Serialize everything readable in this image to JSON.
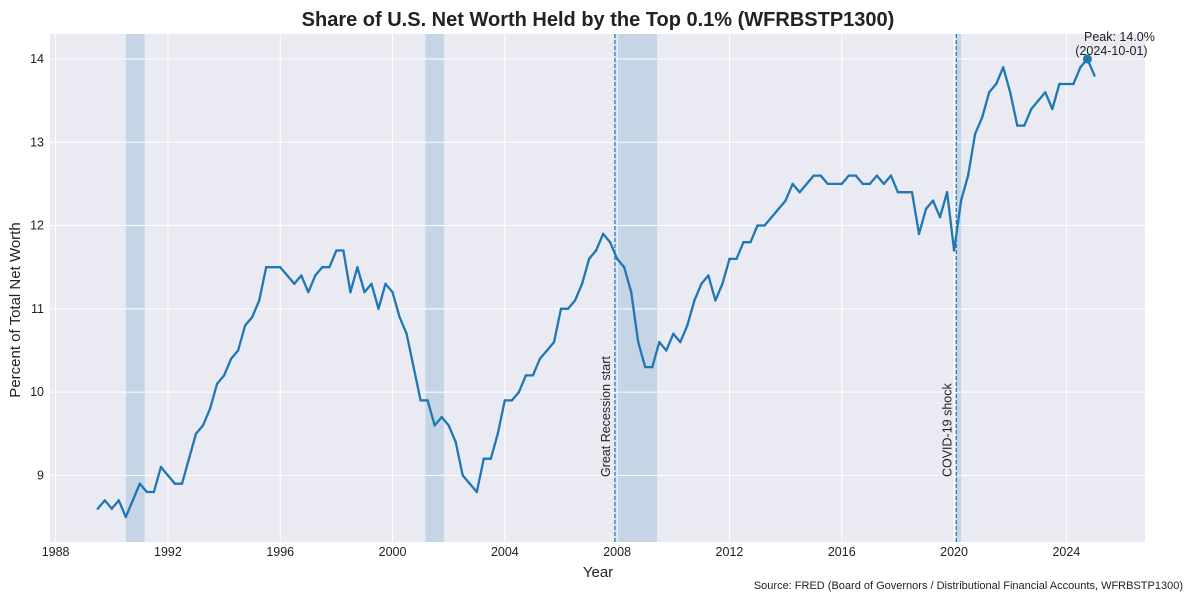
{
  "chart_data": {
    "type": "line",
    "title": "Share of U.S. Net Worth Held by the Top 0.1% (WFRBSTP1300)",
    "xlabel": "Year",
    "ylabel": "Percent of Total Net Worth",
    "xlim": [
      1987.8,
      2026.8
    ],
    "ylim": [
      8.2,
      14.3
    ],
    "x_ticks": [
      1988,
      1992,
      1996,
      2000,
      2004,
      2008,
      2012,
      2016,
      2020,
      2024
    ],
    "y_ticks": [
      9,
      10,
      11,
      12,
      13,
      14
    ],
    "grid": true,
    "background": "#e9eaf2",
    "line_color": "#1f77b4",
    "recession_color": "#c5d5e6",
    "source": "Source: FRED (Board of Governors / Distributional Financial Accounts, WFRBSTP1300)",
    "recessions": [
      {
        "start": 1990.5,
        "end": 1991.17
      },
      {
        "start": 2001.17,
        "end": 2001.83
      },
      {
        "start": 2007.92,
        "end": 2009.42
      },
      {
        "start": 2020.08,
        "end": 2020.25
      }
    ],
    "events": [
      {
        "x": 2007.92,
        "label": "Great Recession start"
      },
      {
        "x": 2020.08,
        "label": "COVID-19 shock"
      }
    ],
    "peak": {
      "x": 2024.75,
      "y": 14.0,
      "label_line1": "Peak: 14.0%",
      "label_line2": "(2024-10-01)"
    },
    "series": [
      {
        "x": [
          1989.5,
          1989.75,
          1990,
          1990.25,
          1990.5,
          1990.75,
          1991,
          1991.25,
          1991.5,
          1991.75,
          1992,
          1992.25,
          1992.5,
          1992.75,
          1993,
          1993.25,
          1993.5,
          1993.75,
          1994,
          1994.25,
          1994.5,
          1994.75,
          1995,
          1995.25,
          1995.5,
          1995.75,
          1996,
          1996.25,
          1996.5,
          1996.75,
          1997,
          1997.25,
          1997.5,
          1997.75,
          1998,
          1998.25,
          1998.5,
          1998.75,
          1999,
          1999.25,
          1999.5,
          1999.75,
          2000,
          2000.25,
          2000.5,
          2000.75,
          2001,
          2001.25,
          2001.5,
          2001.75,
          2002,
          2002.25,
          2002.5,
          2002.75,
          2003,
          2003.25,
          2003.5,
          2003.75,
          2004,
          2004.25,
          2004.5,
          2004.75,
          2005,
          2005.25,
          2005.5,
          2005.75,
          2006,
          2006.25,
          2006.5,
          2006.75,
          2007,
          2007.25,
          2007.5,
          2007.75,
          2008,
          2008.25,
          2008.5,
          2008.75,
          2009,
          2009.25,
          2009.5,
          2009.75,
          2010,
          2010.25,
          2010.5,
          2010.75,
          2011,
          2011.25,
          2011.5,
          2011.75,
          2012,
          2012.25,
          2012.5,
          2012.75,
          2013,
          2013.25,
          2013.5,
          2013.75,
          2014,
          2014.25,
          2014.5,
          2014.75,
          2015,
          2015.25,
          2015.5,
          2015.75,
          2016,
          2016.25,
          2016.5,
          2016.75,
          2017,
          2017.25,
          2017.5,
          2017.75,
          2018,
          2018.25,
          2018.5,
          2018.75,
          2019,
          2019.25,
          2019.5,
          2019.75,
          2020,
          2020.25,
          2020.5,
          2020.75,
          2021,
          2021.25,
          2021.5,
          2021.75,
          2022,
          2022.25,
          2022.5,
          2022.75,
          2023,
          2023.25,
          2023.5,
          2023.75,
          2024,
          2024.25,
          2024.5,
          2024.75,
          2025
        ],
        "values": [
          8.6,
          8.7,
          8.6,
          8.7,
          8.5,
          8.7,
          8.9,
          8.8,
          8.8,
          9.1,
          9.0,
          8.9,
          8.9,
          9.2,
          9.5,
          9.6,
          9.8,
          10.1,
          10.2,
          10.4,
          10.5,
          10.8,
          10.9,
          11.1,
          11.5,
          11.5,
          11.5,
          11.4,
          11.3,
          11.4,
          11.2,
          11.4,
          11.5,
          11.5,
          11.7,
          11.7,
          11.2,
          11.5,
          11.2,
          11.3,
          11.0,
          11.3,
          11.2,
          10.9,
          10.7,
          10.3,
          9.9,
          9.9,
          9.6,
          9.7,
          9.6,
          9.4,
          9.0,
          8.9,
          8.8,
          9.2,
          9.2,
          9.5,
          9.9,
          9.9,
          10.0,
          10.2,
          10.2,
          10.4,
          10.5,
          10.6,
          11.0,
          11.0,
          11.1,
          11.3,
          11.6,
          11.7,
          11.9,
          11.8,
          11.6,
          11.5,
          11.2,
          10.6,
          10.3,
          10.3,
          10.6,
          10.5,
          10.7,
          10.6,
          10.8,
          11.1,
          11.3,
          11.4,
          11.1,
          11.3,
          11.6,
          11.6,
          11.8,
          11.8,
          12.0,
          12.0,
          12.1,
          12.2,
          12.3,
          12.5,
          12.4,
          12.5,
          12.6,
          12.6,
          12.5,
          12.5,
          12.5,
          12.6,
          12.6,
          12.5,
          12.5,
          12.6,
          12.5,
          12.6,
          12.4,
          12.4,
          12.4,
          11.9,
          12.2,
          12.3,
          12.1,
          12.4,
          11.7,
          12.3,
          12.6,
          13.1,
          13.3,
          13.6,
          13.7,
          13.9,
          13.6,
          13.2,
          13.2,
          13.4,
          13.5,
          13.6,
          13.4,
          13.7,
          13.7,
          13.7,
          13.9,
          14.0,
          13.8
        ]
      }
    ]
  }
}
